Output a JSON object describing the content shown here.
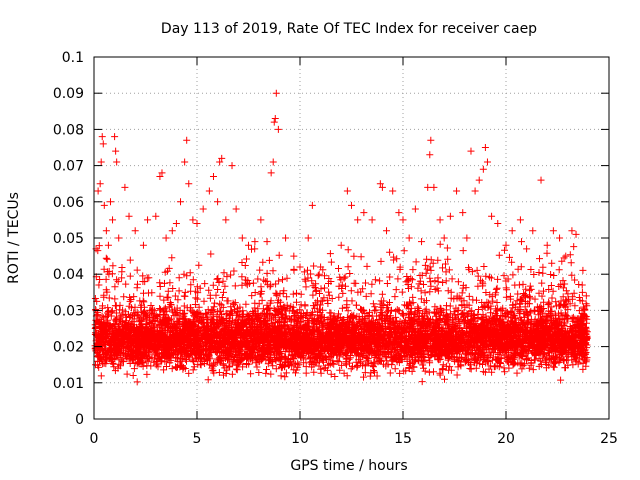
{
  "chart_data": {
    "type": "scatter",
    "title": "Day 113 of 2019, Rate Of TEC Index for receiver caep",
    "xlabel": "GPS time / hours",
    "ylabel": "ROTI / TECUs",
    "xlim": [
      0,
      25
    ],
    "ylim": [
      0,
      0.1
    ],
    "x_ticks": [
      0,
      5,
      10,
      15,
      20,
      25
    ],
    "x_tick_labels": [
      "0",
      "5",
      "10",
      "15",
      "20",
      "25"
    ],
    "y_ticks": [
      0,
      0.01,
      0.02,
      0.03,
      0.04,
      0.05,
      0.06,
      0.07,
      0.08,
      0.09,
      0.1
    ],
    "y_tick_labels": [
      "0",
      "0.01",
      "0.02",
      "0.03",
      "0.04",
      "0.05",
      "0.06",
      "0.07",
      "0.08",
      "0.09",
      "0.1"
    ],
    "grid": true,
    "marker": "+",
    "series_color": "#ff0000",
    "series": [
      {
        "name": "ROTI",
        "points": [
          [
            0.1,
            0.047
          ],
          [
            0.2,
            0.063
          ],
          [
            0.3,
            0.065
          ],
          [
            0.35,
            0.071
          ],
          [
            0.4,
            0.078
          ],
          [
            0.45,
            0.076
          ],
          [
            0.5,
            0.059
          ],
          [
            0.6,
            0.052
          ],
          [
            0.7,
            0.048
          ],
          [
            0.8,
            0.06
          ],
          [
            0.9,
            0.055
          ],
          [
            1.0,
            0.078
          ],
          [
            1.05,
            0.074
          ],
          [
            1.1,
            0.071
          ],
          [
            1.2,
            0.05
          ],
          [
            1.5,
            0.064
          ],
          [
            1.7,
            0.056
          ],
          [
            2.0,
            0.052
          ],
          [
            2.4,
            0.048
          ],
          [
            2.6,
            0.055
          ],
          [
            3.0,
            0.056
          ],
          [
            3.2,
            0.067
          ],
          [
            3.3,
            0.068
          ],
          [
            3.5,
            0.05
          ],
          [
            3.8,
            0.052
          ],
          [
            4.0,
            0.054
          ],
          [
            4.2,
            0.06
          ],
          [
            4.4,
            0.071
          ],
          [
            4.5,
            0.077
          ],
          [
            4.6,
            0.065
          ],
          [
            4.8,
            0.055
          ],
          [
            5.0,
            0.054
          ],
          [
            5.3,
            0.058
          ],
          [
            5.6,
            0.063
          ],
          [
            5.8,
            0.067
          ],
          [
            6.0,
            0.06
          ],
          [
            6.1,
            0.071
          ],
          [
            6.2,
            0.072
          ],
          [
            6.4,
            0.055
          ],
          [
            6.7,
            0.07
          ],
          [
            6.9,
            0.058
          ],
          [
            7.2,
            0.05
          ],
          [
            7.5,
            0.048
          ],
          [
            7.8,
            0.047
          ],
          [
            8.1,
            0.055
          ],
          [
            8.4,
            0.049
          ],
          [
            8.6,
            0.068
          ],
          [
            8.7,
            0.071
          ],
          [
            8.75,
            0.082
          ],
          [
            8.8,
            0.083
          ],
          [
            8.85,
            0.09
          ],
          [
            8.95,
            0.08
          ],
          [
            9.3,
            0.05
          ],
          [
            9.7,
            0.045
          ],
          [
            10.0,
            0.042
          ],
          [
            10.4,
            0.05
          ],
          [
            10.6,
            0.059
          ],
          [
            11.0,
            0.042
          ],
          [
            11.5,
            0.038
          ],
          [
            12.0,
            0.048
          ],
          [
            12.3,
            0.063
          ],
          [
            12.5,
            0.059
          ],
          [
            12.8,
            0.055
          ],
          [
            13.1,
            0.057
          ],
          [
            13.5,
            0.055
          ],
          [
            13.9,
            0.065
          ],
          [
            14.0,
            0.064
          ],
          [
            14.2,
            0.052
          ],
          [
            14.5,
            0.063
          ],
          [
            14.8,
            0.057
          ],
          [
            15.0,
            0.055
          ],
          [
            15.3,
            0.05
          ],
          [
            15.6,
            0.058
          ],
          [
            15.9,
            0.049
          ],
          [
            16.2,
            0.064
          ],
          [
            16.3,
            0.073
          ],
          [
            16.35,
            0.077
          ],
          [
            16.5,
            0.064
          ],
          [
            16.8,
            0.055
          ],
          [
            17.0,
            0.05
          ],
          [
            17.3,
            0.056
          ],
          [
            17.6,
            0.063
          ],
          [
            17.9,
            0.057
          ],
          [
            18.1,
            0.05
          ],
          [
            18.3,
            0.074
          ],
          [
            18.5,
            0.063
          ],
          [
            18.7,
            0.066
          ],
          [
            18.9,
            0.069
          ],
          [
            19.0,
            0.075
          ],
          [
            19.1,
            0.071
          ],
          [
            19.3,
            0.056
          ],
          [
            19.6,
            0.054
          ],
          [
            20.0,
            0.048
          ],
          [
            20.3,
            0.052
          ],
          [
            20.7,
            0.055
          ],
          [
            21.0,
            0.047
          ],
          [
            21.3,
            0.052
          ],
          [
            21.7,
            0.066
          ],
          [
            22.0,
            0.048
          ],
          [
            22.3,
            0.052
          ],
          [
            22.6,
            0.05
          ],
          [
            22.9,
            0.045
          ],
          [
            23.2,
            0.052
          ],
          [
            23.4,
            0.051
          ],
          [
            23.7,
            0.037
          ],
          [
            23.9,
            0.034
          ]
        ]
      }
    ]
  }
}
